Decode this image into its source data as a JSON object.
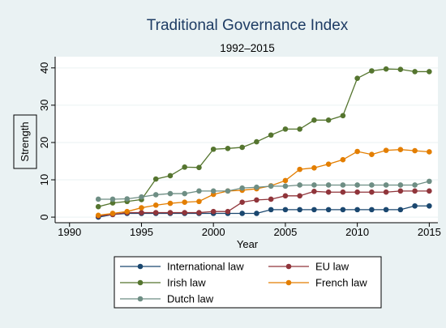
{
  "chart_data": {
    "type": "line",
    "title": "Traditional Governance Index",
    "subtitle": "1992–2015",
    "xlabel": "Year",
    "ylabel": "Strength",
    "xlim": [
      1989,
      2015.6
    ],
    "ylim": [
      -1.5,
      43
    ],
    "x_ticks": [
      1990,
      1995,
      2000,
      2005,
      2010,
      2015
    ],
    "y_ticks": [
      0,
      10,
      20,
      30,
      40
    ],
    "grid": "horizontal",
    "legend_position": "bottom",
    "x": [
      1992,
      1993,
      1994,
      1995,
      1996,
      1997,
      1998,
      1999,
      2000,
      2001,
      2002,
      2003,
      2004,
      2005,
      2006,
      2007,
      2008,
      2009,
      2010,
      2011,
      2012,
      2013,
      2014,
      2015
    ],
    "series": [
      {
        "name": "International law",
        "color": "#1a476f",
        "values": [
          0,
          0.7,
          1,
          1,
          1,
          1,
          1,
          1,
          1,
          1,
          1,
          1,
          2,
          2,
          2,
          2,
          2,
          2,
          2,
          2,
          2,
          2,
          3,
          3
        ]
      },
      {
        "name": "EU law",
        "color": "#90353b",
        "values": [
          0.3,
          0.7,
          1.2,
          1.2,
          1.2,
          1.2,
          1.2,
          1.2,
          1.5,
          1.5,
          4,
          4.6,
          4.8,
          5.7,
          5.7,
          6.9,
          6.7,
          6.7,
          6.7,
          6.7,
          6.7,
          7,
          7,
          7
        ]
      },
      {
        "name": "Irish law",
        "color": "#55752f",
        "values": [
          2.8,
          3.8,
          4.2,
          4.7,
          10.2,
          11.1,
          13.4,
          13.3,
          18.2,
          18.4,
          18.7,
          20.2,
          22,
          23.6,
          23.6,
          26,
          26,
          27.2,
          37.2,
          39.2,
          39.7,
          39.6,
          39,
          39
        ]
      },
      {
        "name": "French law",
        "color": "#e37e00",
        "values": [
          0.5,
          1,
          1.5,
          2.5,
          3.2,
          3.7,
          4,
          4.2,
          6.1,
          7,
          7.2,
          7.6,
          8.4,
          9.8,
          12.8,
          13.2,
          14.2,
          15.4,
          17.6,
          16.8,
          17.9,
          18.1,
          17.8,
          17.5
        ]
      },
      {
        "name": "Dutch law",
        "color": "#6e8e84",
        "values": [
          4.8,
          4.8,
          4.9,
          5.4,
          6,
          6.3,
          6.3,
          7,
          7,
          7,
          7.8,
          8,
          8.3,
          8.3,
          8.6,
          8.6,
          8.6,
          8.6,
          8.6,
          8.6,
          8.6,
          8.6,
          8.6,
          9.6
        ]
      }
    ]
  },
  "legend": {
    "items": [
      {
        "label": "International law",
        "series_index": 0
      },
      {
        "label": "EU law",
        "series_index": 1
      },
      {
        "label": "Irish law",
        "series_index": 2
      },
      {
        "label": "French law",
        "series_index": 3
      },
      {
        "label": "Dutch law",
        "series_index": 4
      }
    ]
  },
  "colors": {
    "background": "#eaf2f3",
    "plot_background": "#ffffff",
    "gridline": "#eaf2f3",
    "title": "#1e3c64"
  }
}
